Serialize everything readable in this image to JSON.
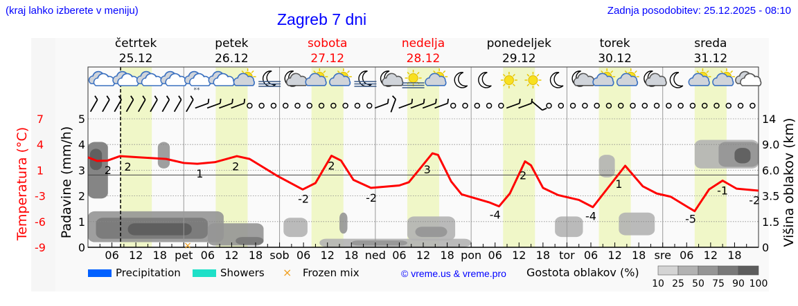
{
  "header": {
    "menu_hint": "(kraj lahko izberete v meniju)",
    "title": "Zagreb 7 dni",
    "updated": "Zadnja posodobitev: 25.12.2025 - 08:10"
  },
  "chart_data": {
    "type": "line",
    "title": "Zagreb 7 dni",
    "days": [
      {
        "name": "četrtek",
        "date": "25.12",
        "weekend": false
      },
      {
        "name": "petek",
        "date": "26.12",
        "weekend": false
      },
      {
        "name": "sobota",
        "date": "27.12",
        "weekend": true
      },
      {
        "name": "nedelja",
        "date": "28.12",
        "weekend": true
      },
      {
        "name": "ponedeljek",
        "date": "29.12",
        "weekend": false
      },
      {
        "name": "torek",
        "date": "30.12",
        "weekend": false
      },
      {
        "name": "sreda",
        "date": "31.12",
        "weekend": false
      }
    ],
    "x_tick_labels": [
      "06",
      "12",
      "18"
    ],
    "day_abbr": [
      "pet",
      "sob",
      "ned",
      "pon",
      "tor",
      "sre"
    ],
    "now_hour": 8.17,
    "daylight_hours": [
      8,
      16
    ],
    "precip_axis": {
      "label": "Padavine (mm/h)",
      "ticks": [
        "0",
        "1",
        "2",
        "3",
        "4",
        "5"
      ],
      "range": [
        0,
        5
      ]
    },
    "temp_axis": {
      "label": "Temperatura (°C)",
      "ticks": [
        "-9",
        "-6",
        "-3",
        "1",
        "4",
        "7"
      ],
      "range": [
        -9,
        7
      ]
    },
    "cloud_axis": {
      "label": "Višina oblakov (km)",
      "ticks": [
        "0",
        "1.5",
        "3.5",
        "6.0",
        "9.0",
        "14"
      ],
      "values": [
        0,
        1.5,
        3.5,
        6,
        9,
        14
      ]
    },
    "temperature_series": {
      "color": "#ff0000",
      "hours": [
        0,
        2.3,
        4.9,
        8,
        12.7,
        19.6,
        24,
        27.4,
        31.8,
        37.3,
        40.5,
        47.4,
        53.8,
        57,
        61,
        63.4,
        66.5,
        70.9,
        78,
        80.4,
        86.3,
        87.7,
        91,
        93.6,
        100.5,
        103,
        105.7,
        109.5,
        111,
        114,
        117.8,
        123,
        126.5,
        134.6,
        139,
        142.5,
        146,
        150.3,
        152,
        155.6,
        159,
        162.5,
        168
      ],
      "values": [
        2.2,
        1.75,
        1.8,
        2.35,
        2.2,
        2.0,
        1.5,
        1.4,
        1.6,
        2.35,
        2.0,
        -0.1,
        -1.8,
        -1.0,
        2.4,
        1.8,
        -0.6,
        -1.6,
        -1.3,
        -0.9,
        2.7,
        2.5,
        -0.8,
        -2.4,
        -3.4,
        -3.9,
        -2.3,
        1.7,
        1.2,
        -1.6,
        -2.5,
        -3.1,
        -4.0,
        1.15,
        -1.4,
        -2.3,
        -2.7,
        -4.0,
        -4.5,
        -1.8,
        -0.7,
        -1.7,
        -1.95
      ]
    },
    "temperature_labels": [
      {
        "hour": 5,
        "text": "2",
        "side": "below"
      },
      {
        "hour": 10,
        "text": "2",
        "side": "below"
      },
      {
        "hour": 28,
        "text": "1",
        "side": "below"
      },
      {
        "hour": 37,
        "text": "2",
        "side": "below"
      },
      {
        "hour": 54,
        "text": "-2",
        "side": "below"
      },
      {
        "hour": 61,
        "text": "2",
        "side": "below"
      },
      {
        "hour": 71,
        "text": "-2",
        "side": "below"
      },
      {
        "hour": 85,
        "text": "3",
        "side": "below"
      },
      {
        "hour": 102,
        "text": "-4",
        "side": "below"
      },
      {
        "hour": 109,
        "text": "2",
        "side": "below"
      },
      {
        "hour": 126,
        "text": "-4",
        "side": "below"
      },
      {
        "hour": 133,
        "text": "1",
        "side": "below"
      },
      {
        "hour": 151,
        "text": "-5",
        "side": "below"
      },
      {
        "hour": 159,
        "text": "-1",
        "side": "below"
      },
      {
        "hour": 167,
        "text": "-2",
        "side": "below"
      }
    ],
    "cloud_areas": [
      {
        "h0": 0,
        "h1": 5,
        "km0": 3.3,
        "km1": 9.5,
        "density": 75
      },
      {
        "h0": 0.5,
        "h1": 3.5,
        "km0": 6,
        "km1": 8.5,
        "density": 90
      },
      {
        "h0": 17.5,
        "h1": 20.5,
        "km0": 6.2,
        "km1": 9.5,
        "density": 50
      },
      {
        "h0": 0,
        "h1": 34,
        "km0": 0.3,
        "km1": 2.3,
        "density": 50
      },
      {
        "h0": 2,
        "h1": 30,
        "km0": 0.5,
        "km1": 1.8,
        "density": 75
      },
      {
        "h0": 10,
        "h1": 26,
        "km0": 0.7,
        "km1": 1.4,
        "density": 90
      },
      {
        "h0": 30,
        "h1": 44,
        "km0": 0.1,
        "km1": 1.4,
        "density": 50
      },
      {
        "h0": 37,
        "h1": 44,
        "km0": 0.15,
        "km1": 0.6,
        "density": 75
      },
      {
        "h0": 49,
        "h1": 55,
        "km0": 0.6,
        "km1": 1.8,
        "density": 25
      },
      {
        "h0": 63,
        "h1": 65,
        "km0": 0.8,
        "km1": 2.2,
        "density": 50
      },
      {
        "h0": 58,
        "h1": 96,
        "km0": 0.02,
        "km1": 0.5,
        "density": 25
      },
      {
        "h0": 66,
        "h1": 80,
        "km0": 0.1,
        "km1": 0.4,
        "density": 50
      },
      {
        "h0": 80,
        "h1": 92,
        "km0": 0.4,
        "km1": 1.9,
        "density": 25
      },
      {
        "h0": 82,
        "h1": 90,
        "km0": 0.6,
        "km1": 1.2,
        "density": 50
      },
      {
        "h0": 117,
        "h1": 124,
        "km0": 0.6,
        "km1": 1.9,
        "density": 25
      },
      {
        "h0": 128,
        "h1": 132,
        "km0": 5.3,
        "km1": 7.8,
        "density": 25
      },
      {
        "h0": 133,
        "h1": 142,
        "km0": 0.7,
        "km1": 2.2,
        "density": 25
      },
      {
        "h0": 152,
        "h1": 168,
        "km0": 6.2,
        "km1": 9.9,
        "density": 25
      },
      {
        "h0": 158,
        "h1": 168,
        "km0": 6.4,
        "km1": 9.5,
        "density": 50
      },
      {
        "h0": 162,
        "h1": 166,
        "km0": 6.8,
        "km1": 8.6,
        "density": 90
      }
    ],
    "frozen_mix_hours": [
      25
    ],
    "weather_icons": [
      "cloudy",
      "cloudy",
      "cloudy",
      "cloudy",
      "cloudy-snow",
      "cloudy",
      "sun-cloud",
      "moon-fog",
      "moon-cloud",
      "sun-cloud",
      "sun-cloud",
      "moon-fog",
      "moon-cloud",
      "sun-fog",
      "sun-cloud",
      "moon",
      "moon",
      "sun",
      "sun",
      "moon",
      "moon-cloud",
      "sun-cloud",
      "sun-cloud",
      "moon-cloud",
      "moon",
      "sun-cloud",
      "sun-cloud",
      "cloudy-grey"
    ],
    "wind": [
      "barb",
      "barb",
      "barb",
      "barb",
      "barb",
      "barb",
      "barb",
      "barb",
      "barb",
      "barb-w",
      "barb-w",
      "barb-w",
      "barb-w",
      "calm",
      "calm",
      "calm",
      "calm",
      "calm",
      "calm",
      "calm",
      "calm",
      "calm",
      "calm",
      "calm",
      "barb-w",
      "barb-n",
      "barb-w",
      "barb-w",
      "barb-w",
      "barb-w",
      "calm",
      "calm",
      "calm",
      "calm",
      "calm",
      "barb-w",
      "barb-w",
      "barb-s",
      "calm",
      "calm",
      "calm",
      "calm",
      "calm",
      "calm",
      "calm",
      "calm",
      "calm",
      "calm",
      "calm",
      "calm",
      "calm",
      "calm",
      "calm",
      "calm",
      "calm",
      "calm"
    ]
  },
  "legend": {
    "items": [
      {
        "label": "Precipitation",
        "color": "#0060ff"
      },
      {
        "label": "Showers",
        "color": "#1ee0c8"
      },
      {
        "label": "Frozen mix",
        "color": "#f0a020"
      }
    ],
    "copyright": "© vreme.us & vreme.pro",
    "cloud_density_label": "Gostota oblakov (%)",
    "cloud_density_ticks": [
      "10",
      "25",
      "50",
      "75",
      "90",
      "100"
    ],
    "cloud_density_colors": [
      "#d4d4d4",
      "#b2b2b2",
      "#959595",
      "#787878",
      "#5c5c5c"
    ]
  }
}
